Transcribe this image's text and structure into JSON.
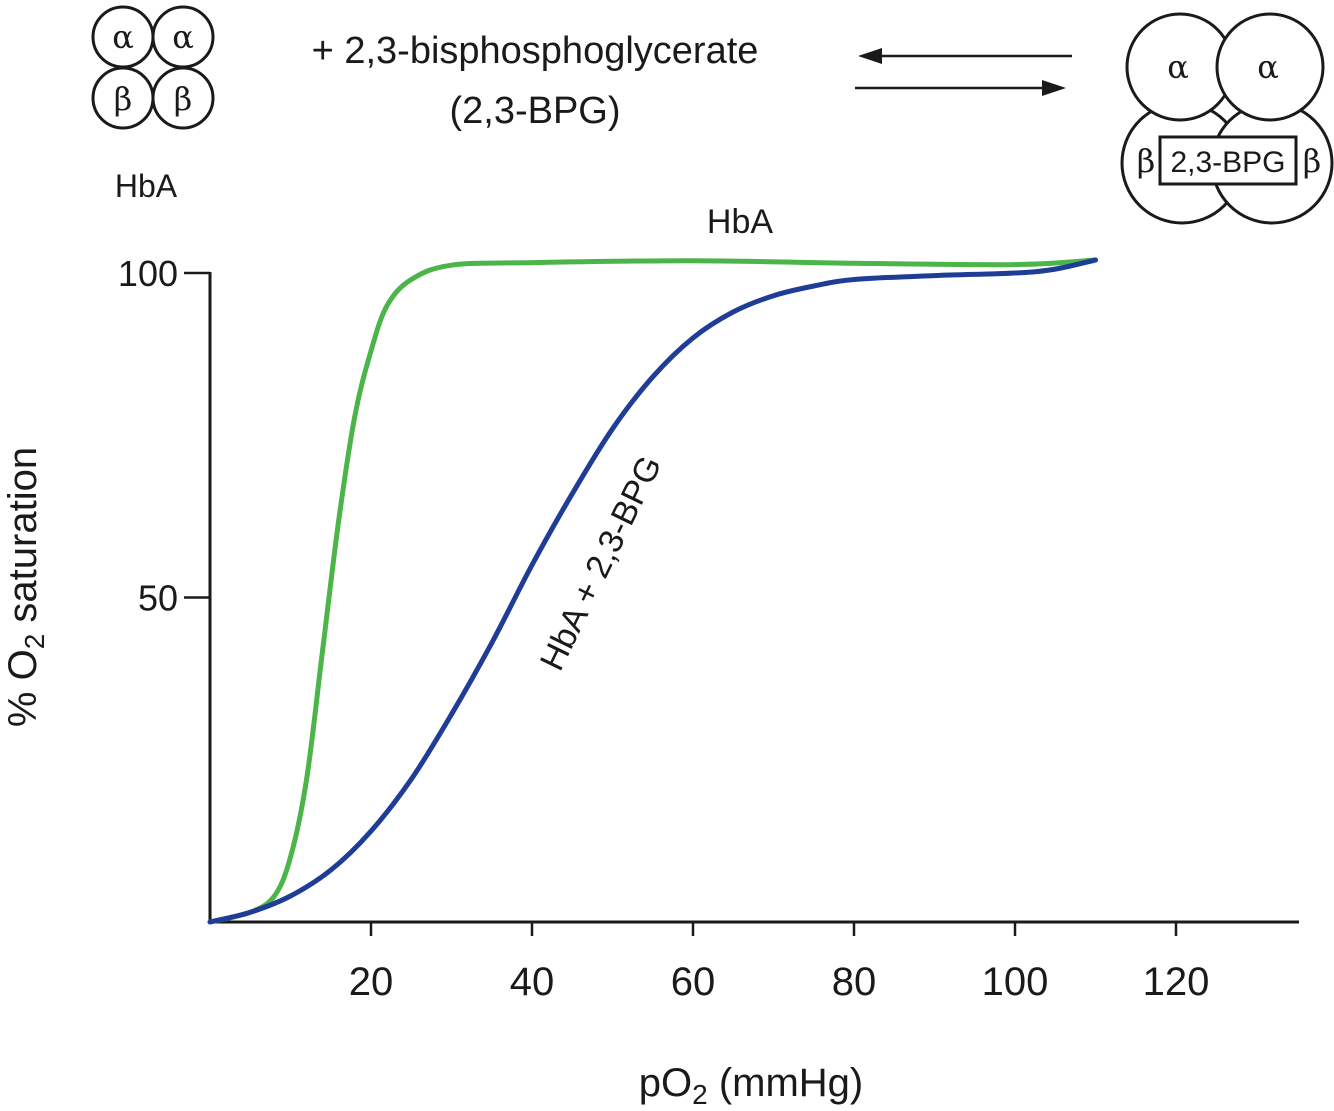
{
  "header": {
    "reaction_text": "+ 2,3-bisphosphoglycerate",
    "reaction_abbrev": "(2,3-BPG)",
    "hba_label": "HbA",
    "alpha": "α",
    "beta": "β",
    "bpg_box_label": "2,3-BPG"
  },
  "chart_data": {
    "type": "line",
    "xlabel": "pO",
    "xlabel_sub": "2",
    "xlabel_unit": " (mmHg)",
    "ylabel": "% O",
    "ylabel_sub": "2",
    "ylabel_rest": " saturation",
    "xlim": [
      0,
      135
    ],
    "ylim": [
      0,
      100
    ],
    "x_ticks": [
      20,
      40,
      60,
      80,
      100,
      120
    ],
    "x_tick_labels": [
      "20",
      "40",
      "60",
      "80",
      "100",
      "120"
    ],
    "y_ticks": [
      50,
      100
    ],
    "y_tick_labels": [
      "50",
      "100"
    ],
    "grid": false,
    "series": [
      {
        "name": "HbA",
        "color": "#4bb549",
        "points": [
          [
            0,
            0
          ],
          [
            5,
            1.5
          ],
          [
            8,
            4
          ],
          [
            10,
            10
          ],
          [
            12,
            22
          ],
          [
            14,
            42
          ],
          [
            16,
            62
          ],
          [
            18,
            78
          ],
          [
            20,
            88
          ],
          [
            22,
            95
          ],
          [
            25,
            99
          ],
          [
            30,
            101.2
          ],
          [
            40,
            101.6
          ],
          [
            60,
            101.9
          ],
          [
            80,
            101.5
          ],
          [
            100,
            101.3
          ],
          [
            110,
            102
          ]
        ]
      },
      {
        "name": "HbA + 2,3-BPG",
        "color": "#1f3d96",
        "points": [
          [
            0,
            0
          ],
          [
            5,
            1.5
          ],
          [
            10,
            4
          ],
          [
            15,
            8
          ],
          [
            20,
            14
          ],
          [
            25,
            22
          ],
          [
            30,
            32
          ],
          [
            35,
            43
          ],
          [
            40,
            55
          ],
          [
            45,
            66
          ],
          [
            50,
            76
          ],
          [
            55,
            84
          ],
          [
            60,
            90
          ],
          [
            65,
            94
          ],
          [
            70,
            96.5
          ],
          [
            75,
            98
          ],
          [
            80,
            99
          ],
          [
            90,
            99.6
          ],
          [
            100,
            100
          ],
          [
            105,
            100.6
          ],
          [
            110,
            102
          ]
        ]
      }
    ]
  }
}
